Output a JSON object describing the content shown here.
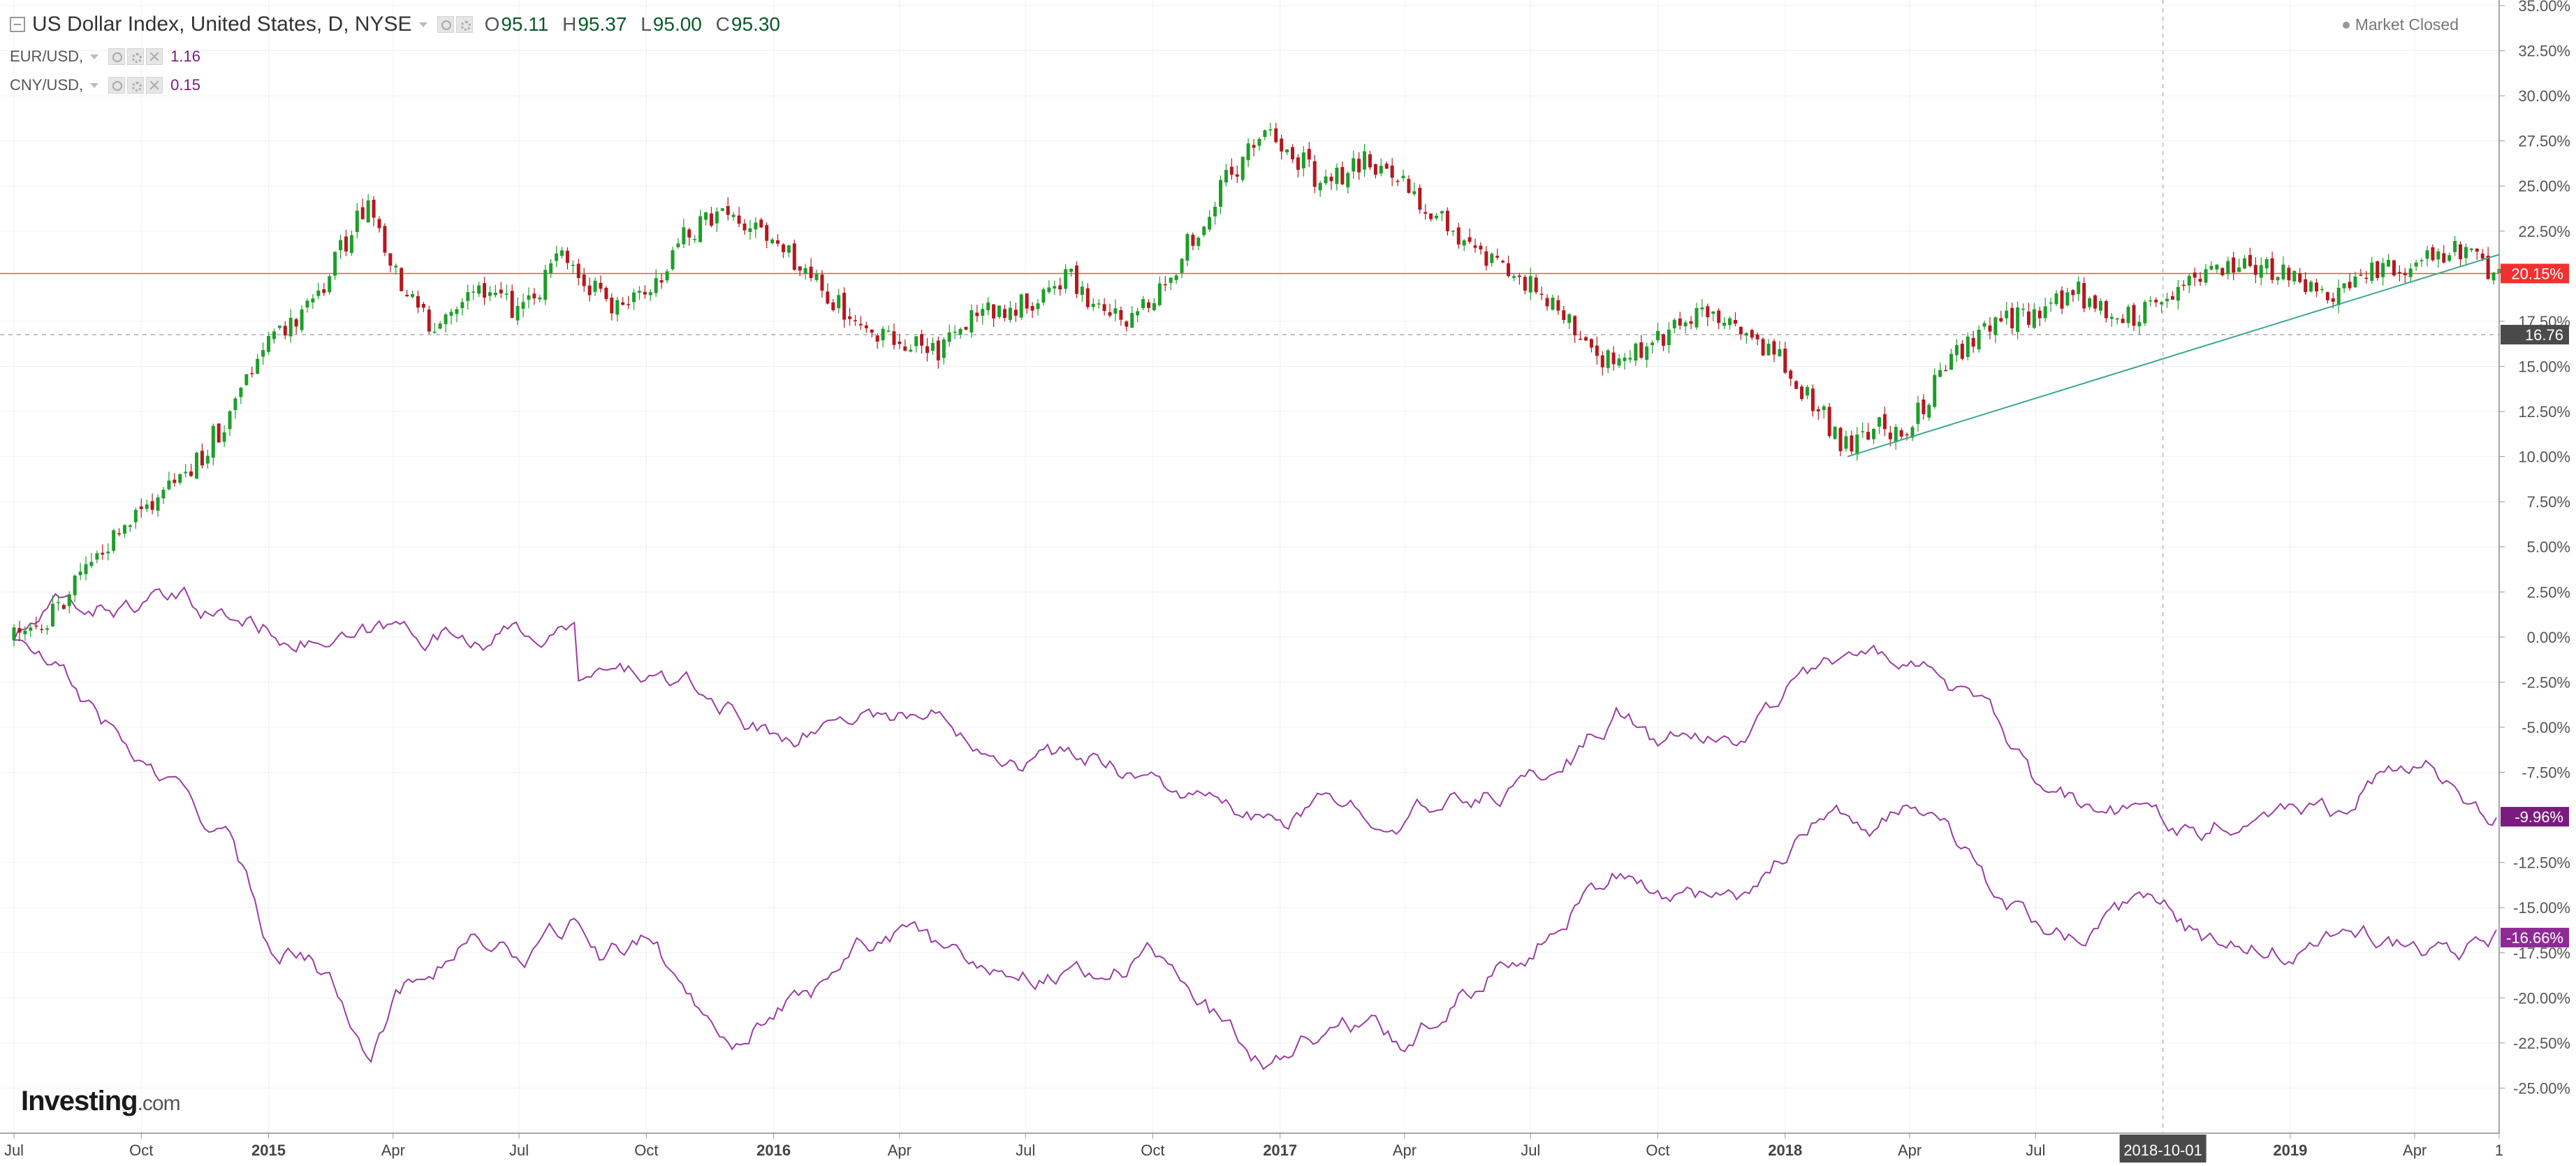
{
  "header": {
    "title": "US Dollar Index, United States, D, NYSE",
    "ohlc": [
      {
        "key": "O",
        "value": "95.11"
      },
      {
        "key": "H",
        "value": "95.37"
      },
      {
        "key": "L",
        "value": "95.00"
      },
      {
        "key": "C",
        "value": "95.30"
      }
    ],
    "comparisons": [
      {
        "symbol": "EUR/USD,",
        "value": "1.16"
      },
      {
        "symbol": "CNY/USD,",
        "value": "0.15"
      }
    ],
    "market_status": "Market Closed"
  },
  "logo": {
    "main": "Investing",
    "suffix": ".com"
  },
  "colors": {
    "up_candle": "#1e9e2a",
    "down_candle": "#b5181e",
    "compare_series": "#9b3ea3",
    "trendline": "#3aa88f",
    "last_price_line": "#ff4b4b"
  },
  "chart_data": {
    "type": "line",
    "title": "US Dollar Index, United States, D, NYSE",
    "y_axis": {
      "unit": "%",
      "range": [
        -27.5,
        35.0
      ],
      "ticks": [
        "35.00%",
        "32.50%",
        "30.00%",
        "27.50%",
        "25.00%",
        "22.50%",
        "17.50%",
        "15.00%",
        "12.50%",
        "10.00%",
        "7.50%",
        "5.00%",
        "2.50%",
        "0.00%",
        "-2.50%",
        "-5.00%",
        "-7.50%",
        "-12.50%",
        "-15.00%",
        "-17.50%",
        "-20.00%",
        "-22.50%",
        "-25.00%"
      ],
      "position": "right"
    },
    "x_axis": {
      "range": [
        "2014-07-01",
        "2019-06-01"
      ],
      "ticks": [
        {
          "label": "Jul",
          "date": "2014-07-01",
          "bold": false
        },
        {
          "label": "Oct",
          "date": "2014-10-01",
          "bold": false
        },
        {
          "label": "2015",
          "date": "2015-01-01",
          "bold": true
        },
        {
          "label": "Apr",
          "date": "2015-04-01",
          "bold": false
        },
        {
          "label": "Jul",
          "date": "2015-07-01",
          "bold": false
        },
        {
          "label": "Oct",
          "date": "2015-10-01",
          "bold": false
        },
        {
          "label": "2016",
          "date": "2016-01-01",
          "bold": true
        },
        {
          "label": "Apr",
          "date": "2016-04-01",
          "bold": false
        },
        {
          "label": "Jul",
          "date": "2016-07-01",
          "bold": false
        },
        {
          "label": "Oct",
          "date": "2016-10-01",
          "bold": false
        },
        {
          "label": "2017",
          "date": "2017-01-01",
          "bold": true
        },
        {
          "label": "Apr",
          "date": "2017-04-01",
          "bold": false
        },
        {
          "label": "Jul",
          "date": "2017-07-01",
          "bold": false
        },
        {
          "label": "Oct",
          "date": "2017-10-01",
          "bold": false
        },
        {
          "label": "2018",
          "date": "2018-01-01",
          "bold": true
        },
        {
          "label": "Apr",
          "date": "2018-04-01",
          "bold": false
        },
        {
          "label": "Jul",
          "date": "2018-07-01",
          "bold": false
        },
        {
          "label": "2019",
          "date": "2019-01-01",
          "bold": true
        },
        {
          "label": "Apr",
          "date": "2019-04-01",
          "bold": false
        },
        {
          "label": "1",
          "date": "2019-06-01",
          "bold": false
        }
      ]
    },
    "crosshair": {
      "date": "2018-10-01",
      "label": "2018-10-01",
      "y_value": 16.76,
      "y_label": "16.76"
    },
    "grid": true,
    "series": [
      {
        "name": "US Dollar Index, United States, D, NYSE",
        "style": "candles",
        "last_label": "20.15%",
        "points": [
          [
            "2014-07-01",
            0.0
          ],
          [
            "2014-08-01",
            1.5
          ],
          [
            "2014-09-01",
            4.5
          ],
          [
            "2014-10-01",
            7.0
          ],
          [
            "2014-11-01",
            8.8
          ],
          [
            "2014-12-01",
            12.0
          ],
          [
            "2015-01-01",
            16.0
          ],
          [
            "2015-02-01",
            18.5
          ],
          [
            "2015-03-15",
            24.2
          ],
          [
            "2015-04-01",
            20.5
          ],
          [
            "2015-05-01",
            17.0
          ],
          [
            "2015-06-01",
            19.5
          ],
          [
            "2015-07-01",
            18.0
          ],
          [
            "2015-08-01",
            21.0
          ],
          [
            "2015-09-01",
            18.5
          ],
          [
            "2015-10-01",
            19.0
          ],
          [
            "2015-11-01",
            22.5
          ],
          [
            "2015-12-01",
            23.5
          ],
          [
            "2016-01-01",
            22.0
          ],
          [
            "2016-02-01",
            19.5
          ],
          [
            "2016-03-01",
            17.5
          ],
          [
            "2016-04-01",
            16.5
          ],
          [
            "2016-05-01",
            16.0
          ],
          [
            "2016-06-01",
            18.0
          ],
          [
            "2016-07-01",
            18.5
          ],
          [
            "2016-08-01",
            20.0
          ],
          [
            "2016-09-01",
            17.5
          ],
          [
            "2016-10-01",
            18.5
          ],
          [
            "2016-11-01",
            22.5
          ],
          [
            "2016-12-20",
            28.5
          ],
          [
            "2017-01-15",
            26.5
          ],
          [
            "2017-02-01",
            25.0
          ],
          [
            "2017-03-01",
            26.5
          ],
          [
            "2017-04-01",
            25.0
          ],
          [
            "2017-05-01",
            23.0
          ],
          [
            "2017-06-01",
            21.0
          ],
          [
            "2017-07-01",
            19.5
          ],
          [
            "2017-08-01",
            17.0
          ],
          [
            "2017-09-01",
            15.0
          ],
          [
            "2017-10-01",
            16.5
          ],
          [
            "2017-11-01",
            18.0
          ],
          [
            "2017-12-01",
            17.0
          ],
          [
            "2018-01-01",
            15.0
          ],
          [
            "2018-02-15",
            10.5
          ],
          [
            "2018-03-01",
            11.5
          ],
          [
            "2018-04-01",
            11.5
          ],
          [
            "2018-05-01",
            15.5
          ],
          [
            "2018-06-01",
            17.5
          ],
          [
            "2018-07-01",
            18.0
          ],
          [
            "2018-08-01",
            19.0
          ],
          [
            "2018-09-01",
            17.5
          ],
          [
            "2018-10-01",
            18.5
          ],
          [
            "2018-11-01",
            20.0
          ],
          [
            "2018-12-01",
            20.5
          ],
          [
            "2019-01-01",
            20.0
          ],
          [
            "2019-02-01",
            19.0
          ],
          [
            "2019-03-01",
            20.5
          ],
          [
            "2019-04-01",
            20.5
          ],
          [
            "2019-05-01",
            21.5
          ],
          [
            "2019-06-01",
            20.15
          ]
        ]
      },
      {
        "name": "EUR/USD,",
        "style": "line",
        "last_label": "-9.96%",
        "points": [
          [
            "2014-07-01",
            0.0
          ],
          [
            "2014-08-01",
            1.5
          ],
          [
            "2014-10-01",
            1.8
          ],
          [
            "2014-11-01",
            1.7
          ],
          [
            "2015-01-01",
            0.5
          ],
          [
            "2015-03-01",
            -0.5
          ],
          [
            "2015-04-01",
            0.3
          ],
          [
            "2015-06-01",
            0.2
          ],
          [
            "2015-08-10",
            0.2
          ],
          [
            "2015-08-12",
            -2.5
          ],
          [
            "2015-10-01",
            -2.0
          ],
          [
            "2015-12-01",
            -4.0
          ],
          [
            "2016-01-01",
            -5.5
          ],
          [
            "2016-02-01",
            -5.0
          ],
          [
            "2016-03-01",
            -4.0
          ],
          [
            "2016-05-01",
            -4.5
          ],
          [
            "2016-07-01",
            -6.5
          ],
          [
            "2016-09-01",
            -6.8
          ],
          [
            "2016-11-01",
            -9.0
          ],
          [
            "2016-12-20",
            -10.5
          ],
          [
            "2017-02-01",
            -9.5
          ],
          [
            "2017-05-01",
            -9.5
          ],
          [
            "2017-07-01",
            -8.0
          ],
          [
            "2017-08-01",
            -6.5
          ],
          [
            "2017-09-01",
            -4.0
          ],
          [
            "2017-10-01",
            -6.0
          ],
          [
            "2017-12-01",
            -5.5
          ],
          [
            "2018-01-01",
            -3.0
          ],
          [
            "2018-02-01",
            -1.0
          ],
          [
            "2018-03-01",
            -1.5
          ],
          [
            "2018-04-01",
            -0.8
          ],
          [
            "2018-05-01",
            -2.5
          ],
          [
            "2018-06-01",
            -5.0
          ],
          [
            "2018-07-01",
            -8.5
          ],
          [
            "2018-08-01",
            -9.5
          ],
          [
            "2018-10-01",
            -10.0
          ],
          [
            "2018-11-01",
            -10.5
          ],
          [
            "2019-01-01",
            -9.0
          ],
          [
            "2019-02-01",
            -9.5
          ],
          [
            "2019-03-01",
            -7.5
          ],
          [
            "2019-04-15",
            -7.5
          ],
          [
            "2019-05-01",
            -8.0
          ],
          [
            "2019-05-15",
            -9.5
          ],
          [
            "2019-06-01",
            -9.96
          ]
        ]
      },
      {
        "name": "CNY/USD,",
        "style": "line",
        "last_label": "-16.66%",
        "points": [
          [
            "2014-07-01",
            0.0
          ],
          [
            "2014-08-01",
            -2.0
          ],
          [
            "2014-10-01",
            -7.0
          ],
          [
            "2014-12-01",
            -11.0
          ],
          [
            "2015-01-01",
            -17.0
          ],
          [
            "2015-02-01",
            -17.5
          ],
          [
            "2015-03-15",
            -22.5
          ],
          [
            "2015-04-01",
            -20.0
          ],
          [
            "2015-05-01",
            -18.0
          ],
          [
            "2015-06-01",
            -16.5
          ],
          [
            "2015-07-01",
            -18.0
          ],
          [
            "2015-08-15",
            -16.0
          ],
          [
            "2015-09-01",
            -18.0
          ],
          [
            "2015-10-01",
            -16.5
          ],
          [
            "2015-11-01",
            -20.0
          ],
          [
            "2015-12-01",
            -22.0
          ],
          [
            "2016-01-01",
            -20.5
          ],
          [
            "2016-02-01",
            -19.5
          ],
          [
            "2016-03-01",
            -16.5
          ],
          [
            "2016-04-01",
            -16.5
          ],
          [
            "2016-05-01",
            -17.5
          ],
          [
            "2016-07-01",
            -18.5
          ],
          [
            "2016-09-01",
            -18.5
          ],
          [
            "2016-10-01",
            -17.5
          ],
          [
            "2016-12-20",
            -23.5
          ],
          [
            "2017-01-15",
            -22.0
          ],
          [
            "2017-03-01",
            -21.5
          ],
          [
            "2017-04-01",
            -22.5
          ],
          [
            "2017-05-01",
            -20.5
          ],
          [
            "2017-06-01",
            -18.5
          ],
          [
            "2017-07-01",
            -17.0
          ],
          [
            "2017-08-01",
            -14.5
          ],
          [
            "2017-09-01",
            -13.0
          ],
          [
            "2017-10-01",
            -14.5
          ],
          [
            "2017-12-01",
            -14.0
          ],
          [
            "2018-01-01",
            -12.0
          ],
          [
            "2018-02-01",
            -9.0
          ],
          [
            "2018-03-01",
            -10.5
          ],
          [
            "2018-04-01",
            -9.5
          ],
          [
            "2018-05-01",
            -11.0
          ],
          [
            "2018-06-01",
            -14.5
          ],
          [
            "2018-07-01",
            -16.0
          ],
          [
            "2018-08-01",
            -16.5
          ],
          [
            "2018-10-01",
            -14.5
          ],
          [
            "2018-11-01",
            -17.0
          ],
          [
            "2019-01-01",
            -17.5
          ],
          [
            "2019-03-01",
            -16.5
          ],
          [
            "2019-04-01",
            -17.5
          ],
          [
            "2019-05-01",
            -17.5
          ],
          [
            "2019-06-01",
            -16.66
          ]
        ]
      }
    ],
    "trendline": {
      "from": [
        "2018-02-15",
        10.0
      ],
      "to": [
        "2019-06-01",
        21.2
      ]
    },
    "horizontal_line": {
      "value": 20.15
    }
  }
}
